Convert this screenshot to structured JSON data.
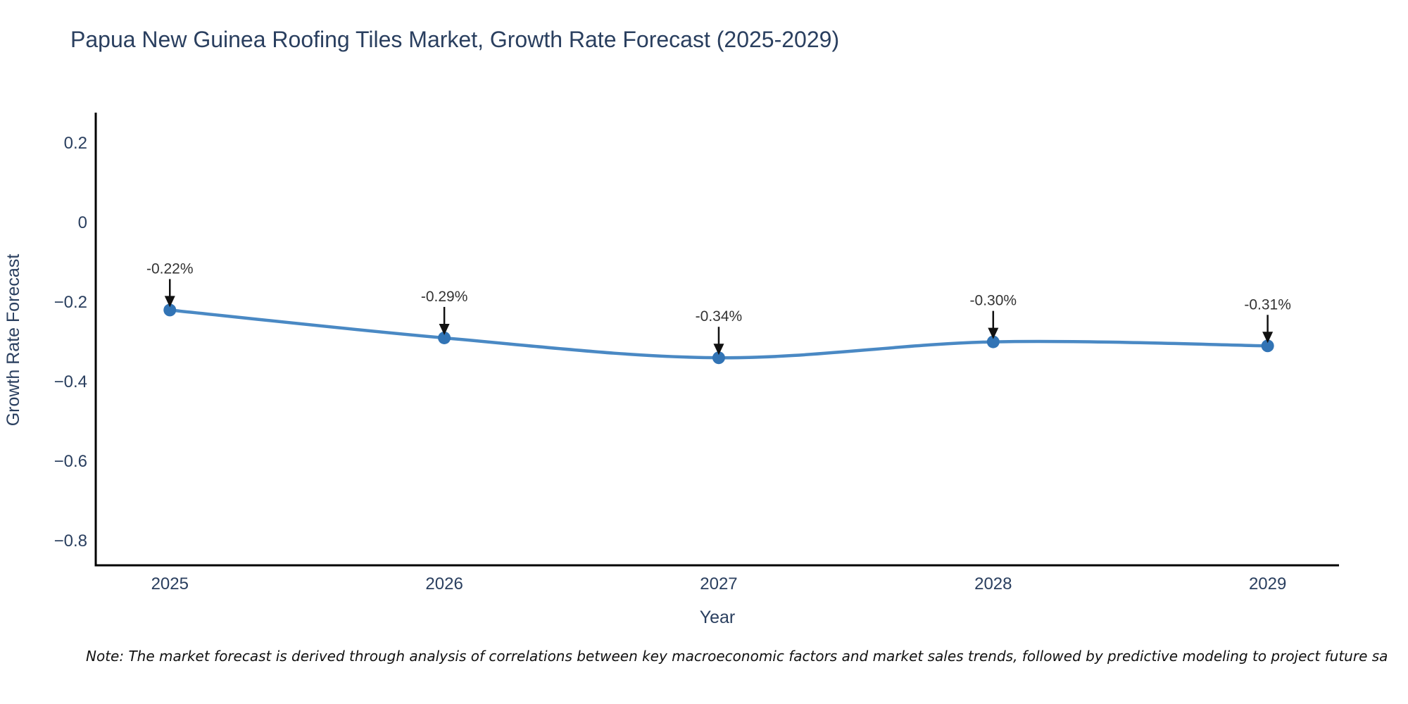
{
  "title": "Papua New Guinea Roofing Tiles Market, Growth Rate Forecast (2025-2029)",
  "note": "Note: The market forecast is derived through analysis of correlations between key macroeconomic factors and market sales trends, followed by predictive modeling to project future sa",
  "chart_data": {
    "type": "line",
    "title": "Papua New Guinea Roofing Tiles Market, Growth Rate Forecast (2025-2029)",
    "xlabel": "Year",
    "ylabel": "Growth Rate Forecast",
    "x": [
      2025,
      2026,
      2027,
      2028,
      2029
    ],
    "series": [
      {
        "name": "Growth Rate Forecast",
        "values": [
          -0.22,
          -0.29,
          -0.34,
          -0.3,
          -0.31
        ]
      }
    ],
    "point_labels": [
      "-0.22%",
      "-0.29%",
      "-0.34%",
      "-0.30%",
      "-0.31%"
    ],
    "x_tick_labels": [
      "2025",
      "2026",
      "2027",
      "2028",
      "2029"
    ],
    "y_ticks": [
      0.2,
      0,
      -0.2,
      -0.4,
      -0.6,
      -0.8
    ],
    "y_tick_labels": [
      "0.2",
      "0",
      "−0.2",
      "−0.4",
      "−0.6",
      "−0.8"
    ],
    "xlim": [
      2024.73,
      2029.26
    ],
    "ylim": [
      -0.862,
      0.273
    ],
    "line_shape": "spline",
    "grid": false,
    "legend_position": "none",
    "colors": {
      "line": "#4a89c4",
      "marker": "#3274b5",
      "axis": "#000000",
      "tick_label": "#2a3f5f",
      "axis_title": "#2a3f5f",
      "title": "#2a3f5f",
      "annotation_text": "#333333",
      "annotation_arrow": "#111111"
    }
  }
}
